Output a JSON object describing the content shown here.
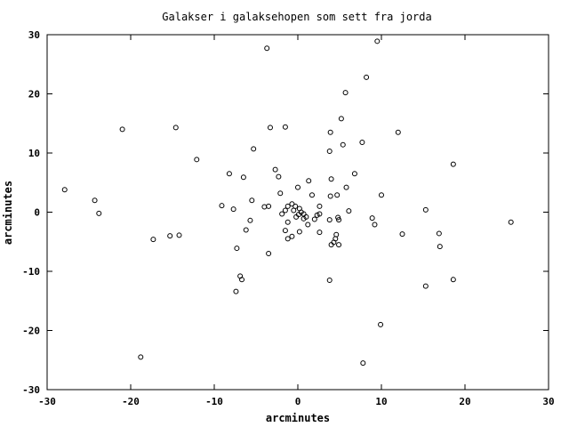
{
  "chart_data": {
    "type": "scatter",
    "title": "Galakser i galaksehopen som sett fra jorda",
    "xlabel": "arcminutes",
    "ylabel": "arcminutes",
    "xlim": [
      -30,
      30
    ],
    "ylim": [
      -30,
      30
    ],
    "xticks": [
      -30,
      -20,
      -10,
      0,
      10,
      20,
      30
    ],
    "yticks": [
      -30,
      -20,
      -10,
      0,
      10,
      20,
      30
    ],
    "grid": false,
    "legend": "none",
    "series": [
      {
        "marker": "open-circle",
        "color": "#000000",
        "points": [
          [
            -3.7,
            27.7
          ],
          [
            9.5,
            28.9
          ],
          [
            8.2,
            22.8
          ],
          [
            5.7,
            20.2
          ],
          [
            5.2,
            15.8
          ],
          [
            -14.6,
            14.3
          ],
          [
            -21.0,
            14.0
          ],
          [
            -3.3,
            14.3
          ],
          [
            -1.5,
            14.4
          ],
          [
            3.9,
            13.5
          ],
          [
            12.0,
            13.5
          ],
          [
            7.7,
            11.8
          ],
          [
            5.4,
            11.4
          ],
          [
            -5.3,
            10.7
          ],
          [
            3.8,
            10.3
          ],
          [
            -12.1,
            8.9
          ],
          [
            18.6,
            8.1
          ],
          [
            -2.7,
            7.2
          ],
          [
            6.8,
            6.5
          ],
          [
            -8.2,
            6.5
          ],
          [
            -6.5,
            5.9
          ],
          [
            -2.3,
            6.0
          ],
          [
            4.0,
            5.6
          ],
          [
            1.3,
            5.3
          ],
          [
            -27.9,
            3.8
          ],
          [
            5.8,
            4.2
          ],
          [
            0.0,
            4.2
          ],
          [
            -2.1,
            3.2
          ],
          [
            1.7,
            2.9
          ],
          [
            4.7,
            2.9
          ],
          [
            3.9,
            2.7
          ],
          [
            10.0,
            2.9
          ],
          [
            -24.3,
            2.0
          ],
          [
            -5.5,
            2.0
          ],
          [
            -0.7,
            1.4
          ],
          [
            -1.2,
            1.0
          ],
          [
            -0.3,
            1.0
          ],
          [
            0.2,
            0.6
          ],
          [
            -9.1,
            1.1
          ],
          [
            -4.0,
            0.9
          ],
          [
            -3.5,
            1.0
          ],
          [
            -7.7,
            0.5
          ],
          [
            2.6,
            1.0
          ],
          [
            6.1,
            0.2
          ],
          [
            15.3,
            0.4
          ],
          [
            -1.5,
            0.3
          ],
          [
            -0.5,
            0.3
          ],
          [
            0.4,
            0.0
          ],
          [
            0.7,
            -0.3
          ],
          [
            -23.8,
            -0.2
          ],
          [
            -1.9,
            -0.3
          ],
          [
            0.1,
            -0.4
          ],
          [
            1.0,
            -0.8
          ],
          [
            2.3,
            -0.5
          ],
          [
            -0.2,
            -0.8
          ],
          [
            2.6,
            -0.3
          ],
          [
            4.8,
            -0.9
          ],
          [
            0.7,
            -1.1
          ],
          [
            -5.7,
            -1.4
          ],
          [
            2.0,
            -1.2
          ],
          [
            -1.2,
            -1.7
          ],
          [
            8.9,
            -1.0
          ],
          [
            3.8,
            -1.3
          ],
          [
            1.2,
            -2.1
          ],
          [
            4.9,
            -1.3
          ],
          [
            9.2,
            -2.1
          ],
          [
            25.5,
            -1.7
          ],
          [
            -6.2,
            -3.0
          ],
          [
            -1.5,
            -3.1
          ],
          [
            0.2,
            -3.3
          ],
          [
            2.6,
            -3.4
          ],
          [
            -0.7,
            -4.1
          ],
          [
            4.6,
            -3.8
          ],
          [
            12.5,
            -3.7
          ],
          [
            16.9,
            -3.6
          ],
          [
            -14.2,
            -3.9
          ],
          [
            -15.3,
            -4.0
          ],
          [
            -17.3,
            -4.6
          ],
          [
            -1.2,
            -4.5
          ],
          [
            4.5,
            -4.5
          ],
          [
            4.3,
            -5.1
          ],
          [
            4.0,
            -5.5
          ],
          [
            4.9,
            -5.5
          ],
          [
            17.0,
            -5.8
          ],
          [
            -7.3,
            -6.1
          ],
          [
            -3.5,
            -7.0
          ],
          [
            -6.9,
            -10.8
          ],
          [
            -6.7,
            -11.4
          ],
          [
            3.8,
            -11.5
          ],
          [
            18.6,
            -11.4
          ],
          [
            15.3,
            -12.5
          ],
          [
            -7.4,
            -13.4
          ],
          [
            9.9,
            -19.0
          ],
          [
            -18.8,
            -24.5
          ],
          [
            7.8,
            -25.5
          ]
        ]
      }
    ]
  }
}
